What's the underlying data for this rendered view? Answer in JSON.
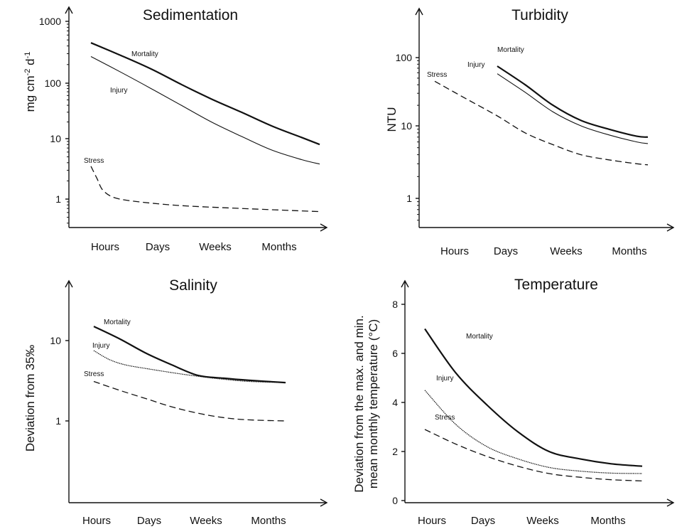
{
  "chart_data": [
    {
      "id": "sed",
      "type": "line",
      "title": "Sedimentation",
      "ylabel_parts": [
        "mg cm",
        "-2",
        " d",
        "-1"
      ],
      "xlabel": "",
      "yscale": "log",
      "ylim": [
        0.3,
        1000
      ],
      "y_ticks": [
        1000,
        100,
        10,
        1
      ],
      "y_tick_labels": [
        "1000",
        "100",
        "10",
        "1"
      ],
      "categories": [
        "Hours",
        "Days",
        "Weeks",
        "Months"
      ],
      "series": [
        {
          "name": "Mortality",
          "style": "solid-thick",
          "points": [
            [
              0,
              450
            ],
            [
              0.5,
              280
            ],
            [
              1,
              170
            ],
            [
              1.5,
              95
            ],
            [
              2,
              52
            ],
            [
              2.5,
              30
            ],
            [
              3,
              17
            ],
            [
              3.5,
              10.5
            ],
            [
              3.8,
              8
            ]
          ]
        },
        {
          "name": "Injury",
          "style": "solid-thin",
          "points": [
            [
              0,
              270
            ],
            [
              0.5,
              150
            ],
            [
              1,
              80
            ],
            [
              1.5,
              40
            ],
            [
              2,
              20
            ],
            [
              2.5,
              11
            ],
            [
              3,
              6.5
            ],
            [
              3.5,
              4.5
            ],
            [
              3.8,
              3.8
            ]
          ]
        },
        {
          "name": "Stress",
          "style": "dashed",
          "points": [
            [
              0,
              3.5
            ],
            [
              0.1,
              2.2
            ],
            [
              0.2,
              1.4
            ],
            [
              0.4,
              1.05
            ],
            [
              0.8,
              0.9
            ],
            [
              1.5,
              0.78
            ],
            [
              2.5,
              0.7
            ],
            [
              3.8,
              0.62
            ]
          ]
        }
      ]
    },
    {
      "id": "turb",
      "type": "line",
      "title": "Turbidity",
      "ylabel_parts": [
        "NTU"
      ],
      "xlabel": "",
      "yscale": "log",
      "ylim": [
        0.4,
        400
      ],
      "y_ticks": [
        100,
        10,
        1
      ],
      "y_tick_labels": [
        "100",
        "10",
        "1"
      ],
      "categories": [
        "Hours",
        "Days",
        "Weeks",
        "Months"
      ],
      "series": [
        {
          "name": "Mortality",
          "style": "solid-thick",
          "points": [
            [
              1,
              75
            ],
            [
              1.5,
              40
            ],
            [
              2,
              20
            ],
            [
              2.5,
              12
            ],
            [
              3,
              9
            ],
            [
              3.5,
              7.2
            ],
            [
              3.7,
              7
            ]
          ]
        },
        {
          "name": "Injury",
          "style": "solid-thin",
          "points": [
            [
              1,
              58
            ],
            [
              1.5,
              31
            ],
            [
              2,
              16
            ],
            [
              2.5,
              10
            ],
            [
              3,
              7.5
            ],
            [
              3.5,
              6
            ],
            [
              3.7,
              5.7
            ]
          ]
        },
        {
          "name": "Stress",
          "style": "dashed",
          "points": [
            [
              0,
              45
            ],
            [
              0.5,
              25
            ],
            [
              1,
              14
            ],
            [
              1.5,
              8
            ],
            [
              2,
              5.5
            ],
            [
              2.5,
              4
            ],
            [
              3,
              3.4
            ],
            [
              3.5,
              3
            ],
            [
              3.7,
              2.9
            ]
          ]
        }
      ]
    },
    {
      "id": "sal",
      "type": "line",
      "title": "Salinity",
      "ylabel_parts": [
        "Deviation from 35‰"
      ],
      "xlabel": "",
      "yscale": "log",
      "ylim": [
        0.1,
        50
      ],
      "y_ticks": [
        10,
        1
      ],
      "y_tick_labels": [
        "10",
        "1"
      ],
      "categories": [
        "Hours",
        "Days",
        "Weeks",
        "Months"
      ],
      "series": [
        {
          "name": "Mortality",
          "style": "solid-thick",
          "points": [
            [
              0,
              15
            ],
            [
              0.5,
              10.5
            ],
            [
              1,
              7
            ],
            [
              1.5,
              5
            ],
            [
              2,
              3.7
            ],
            [
              2.5,
              3.4
            ],
            [
              3,
              3.2
            ],
            [
              3.7,
              3
            ]
          ]
        },
        {
          "name": "Injury",
          "style": "dotted-thin",
          "points": [
            [
              0,
              7.5
            ],
            [
              0.3,
              5.8
            ],
            [
              0.6,
              5
            ],
            [
              1,
              4.5
            ],
            [
              1.5,
              4
            ],
            [
              2,
              3.6
            ],
            [
              2.5,
              3.3
            ],
            [
              3,
              3.1
            ],
            [
              3.7,
              3
            ]
          ]
        },
        {
          "name": "Stress",
          "style": "dashed",
          "points": [
            [
              0,
              3.1
            ],
            [
              0.5,
              2.4
            ],
            [
              1,
              1.9
            ],
            [
              1.5,
              1.5
            ],
            [
              2,
              1.25
            ],
            [
              2.5,
              1.1
            ],
            [
              3,
              1.03
            ],
            [
              3.7,
              1
            ]
          ]
        }
      ]
    },
    {
      "id": "temp",
      "type": "line",
      "title": "Temperature",
      "ylabel_parts": [
        "Deviation from the max. and min.",
        "mean monthly temperature (°C)"
      ],
      "xlabel": "",
      "yscale": "linear",
      "ylim": [
        0,
        8.5
      ],
      "y_ticks": [
        8,
        6,
        4,
        2,
        0
      ],
      "y_tick_labels": [
        "8",
        "6",
        "4",
        "2",
        "0"
      ],
      "categories": [
        "Hours",
        "Days",
        "Weeks",
        "Months"
      ],
      "series": [
        {
          "name": "Mortality",
          "style": "solid-thick",
          "points": [
            [
              0,
              7
            ],
            [
              0.5,
              5.2
            ],
            [
              1,
              3.9
            ],
            [
              1.5,
              2.8
            ],
            [
              2,
              2
            ],
            [
              2.5,
              1.7
            ],
            [
              3,
              1.5
            ],
            [
              3.5,
              1.4
            ]
          ]
        },
        {
          "name": "Injury",
          "style": "dotted-thin",
          "points": [
            [
              0,
              4.5
            ],
            [
              0.5,
              3.1
            ],
            [
              1,
              2.2
            ],
            [
              1.5,
              1.7
            ],
            [
              2,
              1.35
            ],
            [
              2.5,
              1.2
            ],
            [
              3,
              1.12
            ],
            [
              3.5,
              1.1
            ]
          ]
        },
        {
          "name": "Stress",
          "style": "dashed",
          "points": [
            [
              0,
              2.9
            ],
            [
              0.5,
              2.3
            ],
            [
              1,
              1.8
            ],
            [
              1.5,
              1.4
            ],
            [
              2,
              1.1
            ],
            [
              2.5,
              0.95
            ],
            [
              3,
              0.85
            ],
            [
              3.5,
              0.8
            ]
          ]
        }
      ]
    }
  ]
}
